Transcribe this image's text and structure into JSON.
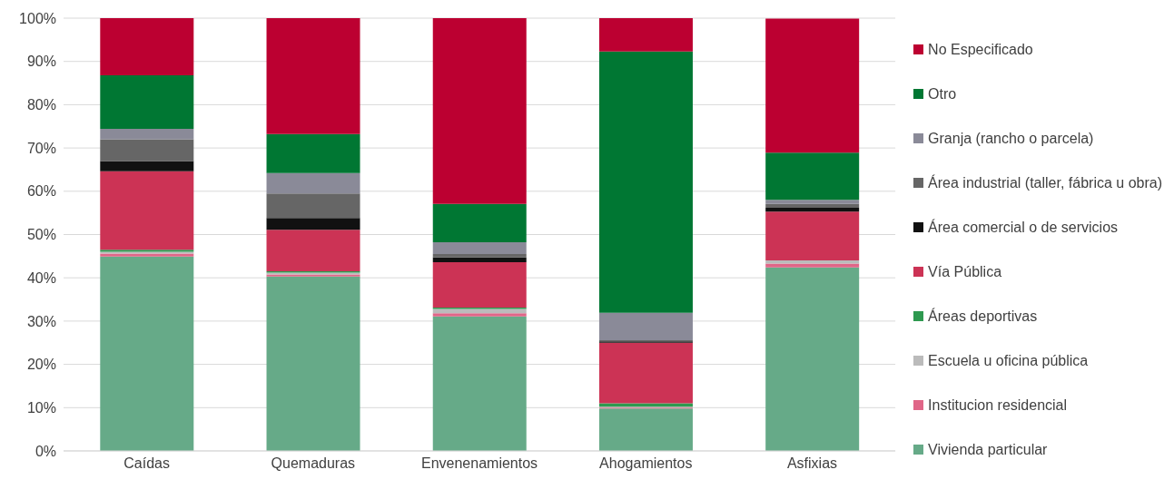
{
  "chart_data": {
    "type": "bar",
    "stacked": true,
    "categories": [
      "Caídas",
      "Quemaduras",
      "Envenenamientos",
      "Ahogamientos",
      "Asfixias"
    ],
    "series": [
      {
        "name": "Vivienda particular",
        "color": "#66aa88",
        "values": [
          44.9,
          40.3,
          31.1,
          9.8,
          42.4
        ]
      },
      {
        "name": "Institucion residencial",
        "color": "#e06688",
        "values": [
          0.7,
          0.5,
          0.7,
          0.2,
          0.9
        ]
      },
      {
        "name": "Escuela u oficina pública",
        "color": "#bbbbbb",
        "values": [
          0.4,
          0.4,
          1.0,
          0.2,
          0.7
        ]
      },
      {
        "name": "Áreas deportivas",
        "color": "#2e9950",
        "values": [
          0.5,
          0.3,
          0.3,
          0.8,
          null
        ]
      },
      {
        "name": "Vía Pública",
        "color": "#cc3355",
        "values": [
          18.1,
          9.6,
          10.5,
          14.0,
          11.3
        ]
      },
      {
        "name": "Área comercial o de servicios",
        "color": "#111111",
        "values": [
          2.4,
          2.7,
          1.1,
          0.3,
          0.9
        ]
      },
      {
        "name": "Área industrial (taller, fábrica u obra)",
        "color": "#666666",
        "values": [
          5.0,
          5.7,
          0.8,
          0.3,
          0.9
        ]
      },
      {
        "name": "Granja (rancho o parcela)",
        "color": "#8a8a98",
        "values": [
          2.4,
          4.7,
          2.7,
          6.3,
          0.9
        ]
      },
      {
        "name": "Otro",
        "color": "#007733",
        "values": [
          12.4,
          9.0,
          8.9,
          60.4,
          10.9
        ]
      },
      {
        "name": "No Especificado",
        "color": "#bc0031",
        "values": [
          13.2,
          26.8,
          42.9,
          7.7,
          31.0
        ]
      }
    ],
    "ylim": [
      0,
      100
    ],
    "yticks": [
      {
        "value": 0,
        "label": "0%"
      },
      {
        "value": 10,
        "label": "10%"
      },
      {
        "value": 20,
        "label": "20%"
      },
      {
        "value": 30,
        "label": "30%"
      },
      {
        "value": 40,
        "label": "40%"
      },
      {
        "value": 50,
        "label": "50%"
      },
      {
        "value": 60,
        "label": "60%"
      },
      {
        "value": 70,
        "label": "70%"
      },
      {
        "value": 80,
        "label": "80%"
      },
      {
        "value": 90,
        "label": "90%"
      },
      {
        "value": 100,
        "label": "100%"
      }
    ],
    "grid": "y",
    "legend": "right"
  }
}
